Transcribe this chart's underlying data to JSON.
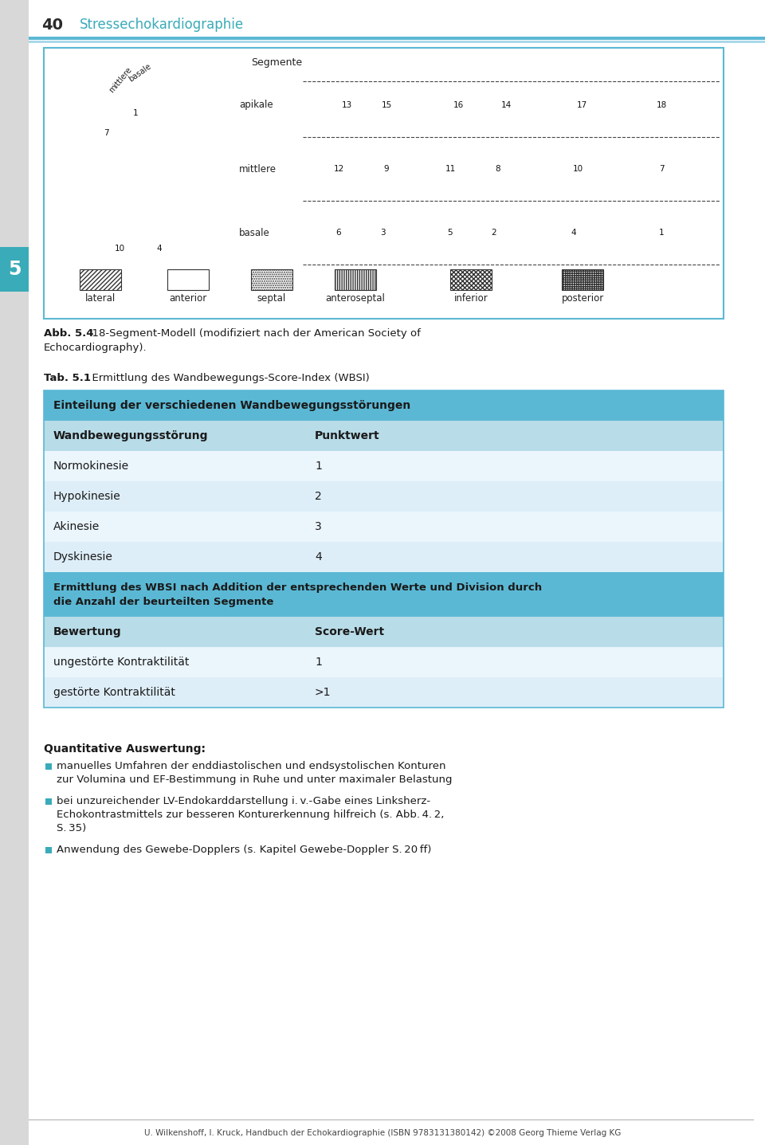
{
  "page_number": "40",
  "page_title": "Stressechokardiographie",
  "chapter_number": "5",
  "header_line_color1": "#5bb8d4",
  "header_line_color2": "#a8d8ea",
  "chapter_bg_color": "#3aabb8",
  "fig_box_border": "#5bb8d4",
  "table_header1_bg": "#5bb8d4",
  "table_header1_text": "Einteilung der verschiedenen Wandbewegungsstörungen",
  "table_col_header_bg": "#b8dce8",
  "table_col1_header": "Wandbewegungsstörung",
  "table_col2_header": "Punktwert",
  "table_rows1": [
    [
      "Normokinesie",
      "1"
    ],
    [
      "Hypokinesie",
      "2"
    ],
    [
      "Akinesie",
      "3"
    ],
    [
      "Dyskinesie",
      "4"
    ]
  ],
  "table_row_bg_a": "#deeef8",
  "table_row_bg_b": "#eaf5fc",
  "table_header2_line1": "Ermittlung des WBSI nach Addition der entsprechenden Werte und Division durch",
  "table_header2_line2": "die Anzahl der beurteilten Segmente",
  "table_col3_header": "Bewertung",
  "table_col4_header": "Score-Wert",
  "table_rows2": [
    [
      "ungestörte Kontraktilität",
      "1"
    ],
    [
      "gestörte Kontraktilität",
      ">1"
    ]
  ],
  "table_border_color": "#5bb8d4",
  "bullet_color": "#3aabb8",
  "section_title": "Quantitative Auswertung:",
  "bullet1a": "manuelles Umfahren der enddiastolischen und endsystolischen Konturen",
  "bullet1b": "zur Volumina und EF-Bestimmung in Ruhe und unter maximaler Belastung",
  "bullet2a": "bei unzureichender LV-Endokarddarstellung i. v.-Gabe eines Linksherz-",
  "bullet2b": "Echokontrastmittels zur besseren Konturerkennung hilfreich (s. Abb. 4. 2,",
  "bullet2c": "S. 35)",
  "bullet3a": "Anwendung des Gewebe-Dopplers (s. Kapitel Gewebe-Doppler S. 20 ff)",
  "footer_text": "U. Wilkenshoff, I. Kruck, Handbuch der Echokardiographie (ISBN 9783131380142) ©2008 Georg Thieme Verlag KG",
  "bg_color": "#ebebeb",
  "main_bg": "#ffffff",
  "legend_labels": [
    "lateral",
    "anterior",
    "septal",
    "anteroseptal",
    "inferior",
    "posterior"
  ],
  "legend_hatches": [
    "/",
    "=",
    ".",
    "|",
    "x",
    "+"
  ],
  "fig_caption_num": "Abb. 5.4",
  "fig_caption_text": "  18-Segment-Modell (modifiziert nach der American Society of",
  "fig_caption_text2": "Echocardiography).",
  "tab_label_num": "Tab. 5.1",
  "tab_label_text": "  Ermittlung des Wandbewegungs-Score-Index (WBSI)"
}
